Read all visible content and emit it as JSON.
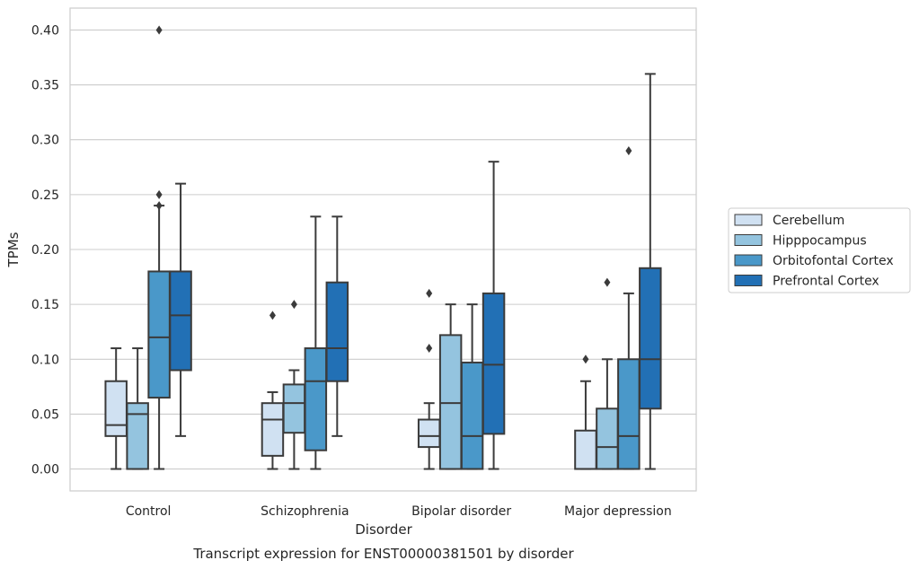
{
  "chart_data": {
    "type": "boxplot",
    "title": "Transcript expression for ENST00000381501 by disorder",
    "xlabel": "Disorder",
    "ylabel": "TPMs",
    "ylim": [
      -0.02,
      0.42
    ],
    "yticks": [
      0.0,
      0.05,
      0.1,
      0.15,
      0.2,
      0.25,
      0.3,
      0.35,
      0.4
    ],
    "ytick_labels": [
      "0.00",
      "0.05",
      "0.10",
      "0.15",
      "0.20",
      "0.25",
      "0.30",
      "0.35",
      "0.40"
    ],
    "grid": "horizontal",
    "legend_position": "right",
    "categories": [
      "Control",
      "Schizophrenia",
      "Bipolar disorder",
      "Major depression"
    ],
    "series": [
      {
        "name": "Cerebellum",
        "color": "#d0e1f2",
        "boxes": [
          {
            "whislo": 0.0,
            "q1": 0.03,
            "med": 0.04,
            "q3": 0.08,
            "whishi": 0.11,
            "fliers": []
          },
          {
            "whislo": 0.0,
            "q1": 0.012,
            "med": 0.045,
            "q3": 0.06,
            "whishi": 0.07,
            "fliers": [
              0.14
            ]
          },
          {
            "whislo": 0.0,
            "q1": 0.02,
            "med": 0.03,
            "q3": 0.045,
            "whishi": 0.06,
            "fliers": [
              0.11,
              0.16
            ]
          },
          {
            "whislo": 0.0,
            "q1": 0.0,
            "med": 0.0,
            "q3": 0.035,
            "whishi": 0.08,
            "fliers": [
              0.1
            ]
          }
        ]
      },
      {
        "name": "Hipppocampus",
        "color": "#94c4df",
        "boxes": [
          {
            "whislo": 0.0,
            "q1": 0.0,
            "med": 0.05,
            "q3": 0.06,
            "whishi": 0.11,
            "fliers": []
          },
          {
            "whislo": 0.0,
            "q1": 0.033,
            "med": 0.06,
            "q3": 0.077,
            "whishi": 0.09,
            "fliers": [
              0.15
            ]
          },
          {
            "whislo": 0.0,
            "q1": 0.0,
            "med": 0.06,
            "q3": 0.122,
            "whishi": 0.15,
            "fliers": []
          },
          {
            "whislo": 0.0,
            "q1": 0.0,
            "med": 0.02,
            "q3": 0.055,
            "whishi": 0.1,
            "fliers": [
              0.17
            ]
          }
        ]
      },
      {
        "name": "Orbitofontal Cortex",
        "color": "#4a98c9",
        "boxes": [
          {
            "whislo": 0.0,
            "q1": 0.065,
            "med": 0.12,
            "q3": 0.18,
            "whishi": 0.24,
            "fliers": [
              0.24,
              0.25,
              0.4
            ]
          },
          {
            "whislo": 0.0,
            "q1": 0.017,
            "med": 0.08,
            "q3": 0.11,
            "whishi": 0.23,
            "fliers": []
          },
          {
            "whislo": 0.0,
            "q1": 0.0,
            "med": 0.03,
            "q3": 0.097,
            "whishi": 0.15,
            "fliers": []
          },
          {
            "whislo": 0.0,
            "q1": 0.0,
            "med": 0.03,
            "q3": 0.1,
            "whishi": 0.16,
            "fliers": [
              0.29
            ]
          }
        ]
      },
      {
        "name": "Prefrontal Cortex",
        "color": "#2270b5",
        "boxes": [
          {
            "whislo": 0.03,
            "q1": 0.09,
            "med": 0.14,
            "q3": 0.18,
            "whishi": 0.26,
            "fliers": []
          },
          {
            "whislo": 0.03,
            "q1": 0.08,
            "med": 0.11,
            "q3": 0.17,
            "whishi": 0.23,
            "fliers": []
          },
          {
            "whislo": 0.0,
            "q1": 0.032,
            "med": 0.095,
            "q3": 0.16,
            "whishi": 0.28,
            "fliers": []
          },
          {
            "whislo": 0.0,
            "q1": 0.055,
            "med": 0.1,
            "q3": 0.183,
            "whishi": 0.36,
            "fliers": []
          }
        ]
      }
    ]
  }
}
